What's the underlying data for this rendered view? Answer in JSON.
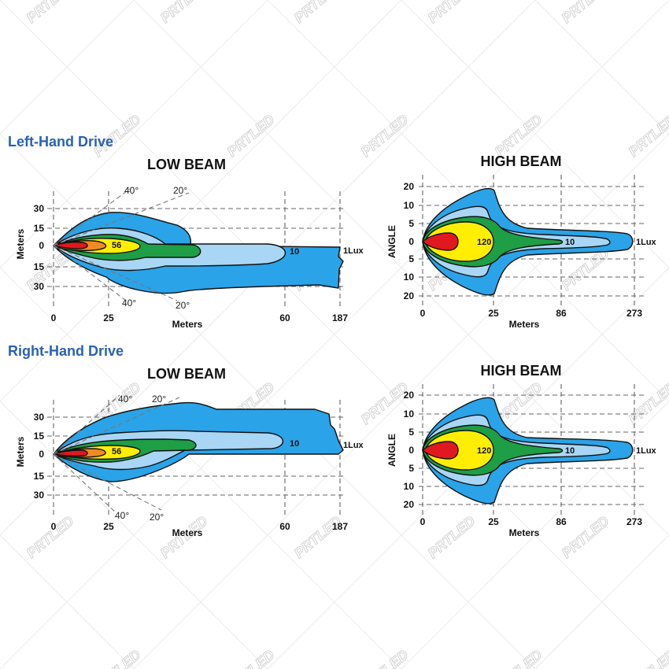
{
  "watermark": {
    "text": "PRTLED"
  },
  "colors": {
    "outer": "#2aa3e8",
    "light": "#a9d6f4",
    "green": "#1e9e45",
    "yellow": "#ffee00",
    "orange": "#f08a24",
    "red": "#e0181f",
    "section_title": "#2a62b0"
  },
  "sections": [
    {
      "title": "Left-Hand Drive",
      "low_beam": {
        "title": "LOW BEAM",
        "xlabel": "Meters",
        "ylabel": "Meters",
        "x_ticks": [
          "0",
          "25",
          "60",
          "187"
        ],
        "y_ticks_top": [
          "30",
          "15",
          "0"
        ],
        "y_ticks_bottom": [
          "15",
          "30"
        ],
        "angles_top": [
          "40°",
          "20°"
        ],
        "angles_bottom": [
          "40°",
          "20°"
        ],
        "contour_labels": [
          "56",
          "10",
          "1Lux"
        ]
      },
      "high_beam": {
        "title": "HIGH BEAM",
        "xlabel": "Meters",
        "ylabel": "ANGLE",
        "x_ticks": [
          "0",
          "25",
          "86",
          "273"
        ],
        "y_ticks_top": [
          "20",
          "10",
          "5",
          "0"
        ],
        "y_ticks_bottom": [
          "5",
          "10",
          "20"
        ],
        "contour_labels": [
          "120",
          "10",
          "1Lux"
        ]
      }
    },
    {
      "title": "Right-Hand Drive",
      "low_beam": {
        "title": "LOW BEAM",
        "xlabel": "Meters",
        "ylabel": "Meters",
        "x_ticks": [
          "0",
          "25",
          "60",
          "187"
        ],
        "y_ticks_top": [
          "30",
          "15",
          "0"
        ],
        "y_ticks_bottom": [
          "15",
          "30"
        ],
        "angles_top": [
          "40°",
          "20°"
        ],
        "angles_bottom": [
          "40°",
          "20°"
        ],
        "contour_labels": [
          "56",
          "10",
          "1Lux"
        ]
      },
      "high_beam": {
        "title": "HIGH BEAM",
        "xlabel": "Meters",
        "ylabel": "ANGLE",
        "x_ticks": [
          "0",
          "25",
          "86",
          "273"
        ],
        "y_ticks_top": [
          "20",
          "10",
          "5",
          "0"
        ],
        "y_ticks_bottom": [
          "5",
          "10",
          "20"
        ],
        "contour_labels": [
          "120",
          "10",
          "1Lux"
        ]
      }
    }
  ]
}
